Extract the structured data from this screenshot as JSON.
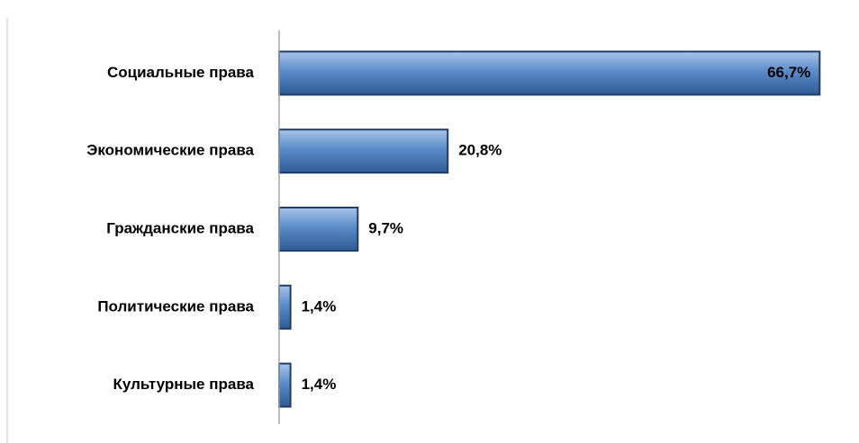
{
  "chart_data": {
    "type": "barh",
    "categories": [
      "Социальные права",
      "Экономические права",
      "Гражданские права",
      "Политические права",
      "Культурные права"
    ],
    "values": [
      66.7,
      20.8,
      9.7,
      1.4,
      1.4
    ],
    "value_labels": [
      "66,7%",
      "20,8%",
      "9,7%",
      "1,4%",
      "1,4%"
    ],
    "color": "#4f81bd",
    "xlim": [
      0,
      70
    ]
  }
}
